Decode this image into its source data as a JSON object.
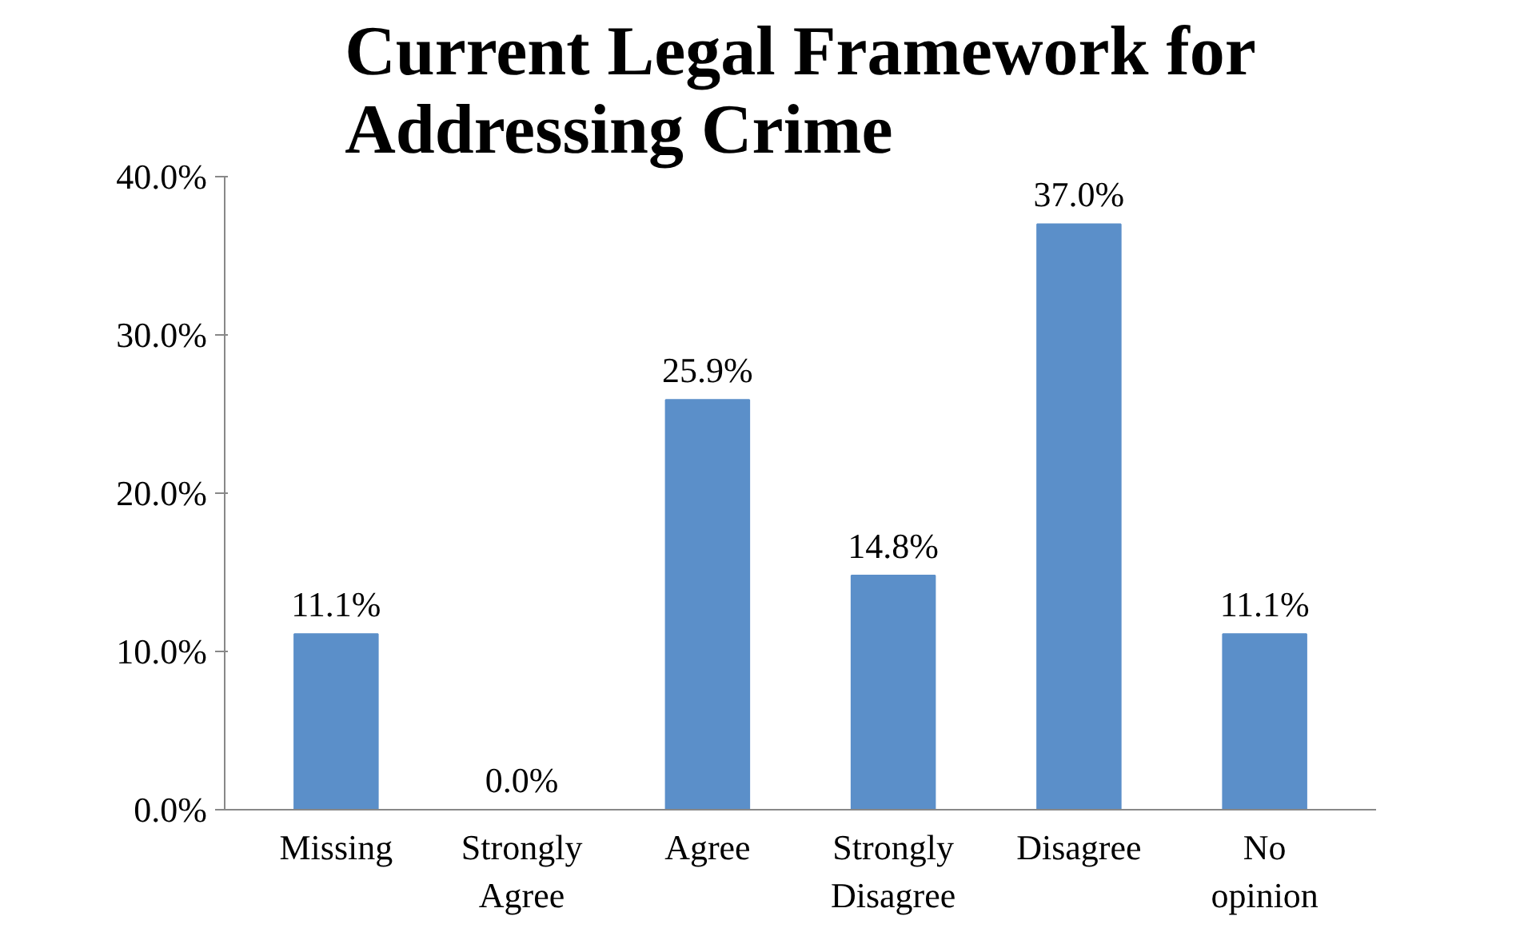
{
  "chart_data": {
    "type": "bar",
    "title": "Current Legal Framework for Addressing Crime",
    "categories": [
      "Missing",
      "Strongly Agree",
      "Agree",
      "Strongly Disagree",
      "Disagree",
      "No opinion"
    ],
    "values": [
      11.1,
      0.0,
      25.9,
      14.8,
      37.0,
      11.1
    ],
    "value_labels": [
      "11.1%",
      "0.0%",
      "25.9%",
      "14.8%",
      "37.0%",
      "11.1%"
    ],
    "color": "#5b8fc9",
    "ylim": [
      0,
      40
    ],
    "yticks": [
      {
        "value": 0,
        "label": "0.0%"
      },
      {
        "value": 10,
        "label": "10.0%"
      },
      {
        "value": 20,
        "label": "20.0%"
      },
      {
        "value": 30,
        "label": "30.0%"
      },
      {
        "value": 40,
        "label": "40.0%"
      }
    ],
    "grid": false
  }
}
